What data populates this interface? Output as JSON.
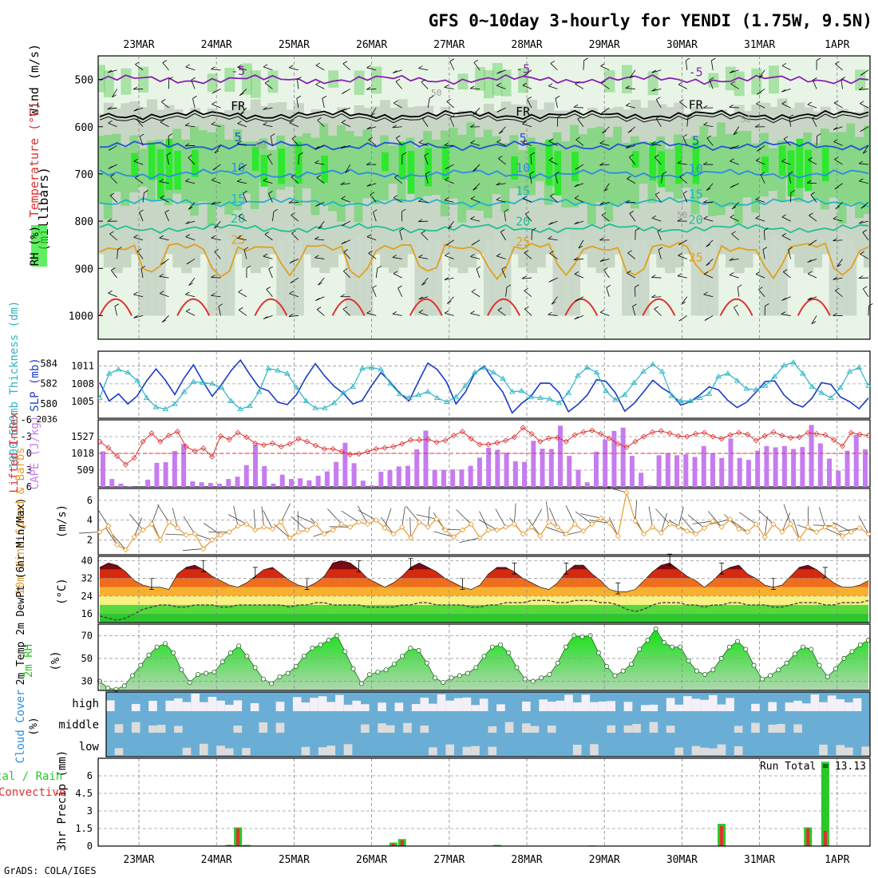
{
  "header": {
    "title": "GFS 0~10day 3-hourly for YENDI (1.75W, 9.5N)",
    "credit": "GrADS: COLA/IGES"
  },
  "colors": {
    "rh_light": "#e8f5e6",
    "rh_mid": "#c8d6c6",
    "rh_green": "#7dd67a",
    "rh_bright": "#2ee82e",
    "temp_m5": "#8a1fb5",
    "temp_5": "#1f55d6",
    "temp_10": "#2a8de0",
    "temp_15": "#1fb5c8",
    "temp_20": "#20c090",
    "temp_25": "#e0a020",
    "temp_30": "#e03030",
    "slp": "#1a3cc8",
    "thickness": "#2ab5c5",
    "lifted_index": "#e03030",
    "cape": "#c67cf0",
    "wind10m": "#e89a30",
    "rh2m": "#28c828",
    "cloud": "#6aaed6",
    "precip_total": "#28c828",
    "precip_conv": "#e03030"
  },
  "chart_data": [
    {
      "type": "heatmap",
      "panel": "upper-air",
      "y_axis_label": "(millibars)",
      "side_labels": [
        "Wind (m/s)",
        "Temperature (°C)",
        "RH (%)"
      ],
      "yticks": [
        500,
        600,
        700,
        800,
        900,
        1000
      ],
      "ylim": [
        1050,
        450
      ],
      "date_labels": [
        "23MAR",
        "24MAR",
        "25MAR",
        "26MAR",
        "27MAR",
        "28MAR",
        "29MAR",
        "30MAR",
        "31MAR",
        "1APR"
      ],
      "isotherms": [
        {
          "label": "-5",
          "level": 500
        },
        {
          "label": "FR",
          "level": 575
        },
        {
          "label": "5",
          "level": 640
        },
        {
          "label": "10",
          "level": 700
        },
        {
          "label": "15",
          "level": 760
        },
        {
          "label": "20",
          "level": 815
        },
        {
          "label": "25",
          "level": 875
        }
      ],
      "rh_labels": [
        "50",
        "50",
        "50",
        "50"
      ]
    },
    {
      "type": "line",
      "panel": "slp-thickness",
      "left_label": "1000-500mb Thickness (dm)",
      "right_label": "SLP (mb)",
      "left_ticks": [
        580,
        582,
        584
      ],
      "right_ticks": [
        1005,
        1008,
        1011
      ],
      "left_range": [
        578.6,
        585.2
      ],
      "right_range": [
        1002.2,
        1013.5
      ],
      "series": [
        {
          "key": "slp",
          "values": [
            1008.2,
            1005.1,
            1006.3,
            1004.6,
            1006.0,
            1008.5,
            1010.5,
            1008.6,
            1006.2,
            1009.0,
            1011.2,
            1008.4,
            1005.9,
            1007.9,
            1010.2,
            1012.0,
            1009.6,
            1007.4,
            1006.8,
            1004.9,
            1004.5,
            1006.2,
            1009.1,
            1011.4,
            1009.3,
            1007.6,
            1006.4,
            1004.6,
            1005.2,
            1007.7,
            1009.9,
            1008.3,
            1006.4,
            1005.1,
            1008.4,
            1011.5,
            1010.4,
            1008.3,
            1004.6,
            1006.6,
            1009.8,
            1011.0,
            1008.6,
            1006.6,
            1003.1,
            1004.7,
            1005.9,
            1008.1,
            1008.1,
            1006.5,
            1003.3,
            1004.5,
            1006.1,
            1008.7,
            1008.4,
            1006.5,
            1003.4,
            1004.7,
            1006.6,
            1008.6,
            1007.3,
            1006.3,
            1004.4,
            1005.0,
            1006.1,
            1007.5,
            1007.0,
            1005.2,
            1004.0,
            1004.9,
            1006.6,
            1008.4,
            1008.5,
            1006.1,
            1004.7,
            1004.1,
            1005.6,
            1008.2,
            1007.9,
            1005.8,
            1005.0,
            1003.8,
            1005.6
          ]
        },
        {
          "key": "thickness",
          "values": [
            580.6,
            583.0,
            583.4,
            583.1,
            582.3,
            580.6,
            579.7,
            579.5,
            580.0,
            581.2,
            582.2,
            582.1,
            582.0,
            581.6,
            580.3,
            579.5,
            579.8,
            581.2,
            583.5,
            583.3,
            583.0,
            581.6,
            580.3,
            579.6,
            579.6,
            580.1,
            581.1,
            581.7,
            583.5,
            583.6,
            583.4,
            582.0,
            581.0,
            580.6,
            580.9,
            581.2,
            580.6,
            580.2,
            580.7,
            581.8,
            583.1,
            583.6,
            583.1,
            582.5,
            581.2,
            581.3,
            580.7,
            580.6,
            580.5,
            580.1,
            581.1,
            582.8,
            583.6,
            583.1,
            581.3,
            580.4,
            580.9,
            582.1,
            583.2,
            583.9,
            583.2,
            580.8,
            580.3,
            580.3,
            580.6,
            581.0,
            582.7,
            583.0,
            582.3,
            581.5,
            581.4,
            581.8,
            582.7,
            583.8,
            584.1,
            583.0,
            581.7,
            581.1,
            580.6,
            581.6,
            583.2,
            583.6,
            581.8
          ]
        }
      ]
    },
    {
      "type": "bar",
      "panel": "cape-li",
      "left_label": "Lifted Index",
      "right_label": "CAPE (J/kg)",
      "cape_ticks": [
        "509",
        "1018",
        "1527",
        "2036"
      ],
      "li_ticks": [
        "-3",
        "0",
        "3",
        "6"
      ],
      "li_top_tick": "-6",
      "cape_range": [
        0,
        2036
      ],
      "li_range": [
        6,
        -6
      ],
      "series": [
        {
          "key": "cape",
          "values": [
            1080,
            240,
            100,
            20,
            0,
            220,
            730,
            750,
            1090,
            1310,
            170,
            140,
            120,
            100,
            240,
            310,
            660,
            1280,
            630,
            100,
            370,
            240,
            260,
            200,
            340,
            470,
            760,
            1340,
            720,
            190,
            50,
            460,
            510,
            620,
            640,
            1140,
            1710,
            520,
            520,
            530,
            530,
            640,
            890,
            1190,
            1130,
            1040,
            780,
            760,
            1400,
            1160,
            1150,
            1860,
            940,
            520,
            140,
            1070,
            1440,
            1700,
            1800,
            940,
            430,
            40,
            960,
            1020,
            960,
            990,
            910,
            1240,
            1020,
            880,
            1470,
            880,
            820,
            1100,
            1240,
            1200,
            1240,
            1150,
            1210,
            1880,
            1320,
            860,
            490,
            1100,
            1580,
            1140
          ]
        },
        {
          "key": "li",
          "values": [
            -2.1,
            -1.0,
            0.5,
            2.0,
            0.8,
            -2.1,
            -3.6,
            -2.1,
            -3.2,
            -3.9,
            -1.2,
            -0.4,
            -0.9,
            0.6,
            -3.1,
            -2.5,
            -3.7,
            -2.9,
            -1.8,
            -1.5,
            -1.8,
            -1.2,
            -1.7,
            -2.6,
            -2.1,
            -1.4,
            -0.8,
            -0.8,
            -0.3,
            0.2,
            0.1,
            -0.3,
            -0.8,
            -1.0,
            -1.2,
            -1.7,
            -2.4,
            -2.4,
            -2.5,
            -2.0,
            -2.3,
            -3.2,
            -3.9,
            -2.6,
            -1.6,
            -1.6,
            -1.9,
            -2.3,
            -2.9,
            -4.6,
            -3.5,
            -2.1,
            -2.7,
            -2.8,
            -2.1,
            -3.3,
            -3.8,
            -4.1,
            -3.5,
            -2.7,
            -1.7,
            -1.1,
            -2.1,
            -3.0,
            -3.8,
            -4.0,
            -3.6,
            -3.1,
            -3.0,
            -3.5,
            -3.7,
            -3.0,
            -2.6,
            -3.3,
            -3.7,
            -3.4,
            -2.3,
            -3.1,
            -3.8,
            -3.2,
            -2.8,
            -2.9,
            -3.7,
            -3.5,
            -3.3,
            -2.4,
            -1.3,
            -3.7,
            -3.4,
            -3.2
          ]
        }
      ]
    },
    {
      "type": "line",
      "panel": "wind10m",
      "left_label": "10m Wind Speed & Barbs",
      "unit_label": "(m/s)",
      "yticks": [
        2,
        4,
        6
      ],
      "ylim": [
        0.5,
        7.2
      ],
      "series": [
        {
          "key": "wind",
          "values": [
            2.8,
            3.4,
            1.5,
            1.0,
            2.3,
            3.0,
            3.6,
            2.0,
            3.8,
            3.2,
            2.5,
            2.6,
            1.1,
            2.0,
            2.5,
            2.8,
            3.4,
            3.6,
            3.0,
            3.3,
            3.1,
            3.8,
            2.2,
            2.8,
            3.0,
            3.6,
            2.6,
            3.0,
            3.6,
            3.3,
            3.8,
            3.6,
            4.0,
            3.2,
            2.6,
            3.3,
            2.2,
            3.8,
            3.3,
            4.1,
            3.0,
            2.3,
            3.0,
            3.6,
            2.2,
            3.0,
            3.0,
            3.3,
            3.6,
            2.6,
            3.3,
            2.4,
            3.8,
            3.3,
            2.6,
            3.6,
            2.9,
            3.6,
            4.2,
            3.7,
            2.4,
            6.8,
            3.9,
            2.6,
            3.3,
            2.7,
            3.6,
            3.3,
            2.9,
            2.6,
            3.2,
            3.9,
            3.3,
            4.1,
            3.1,
            2.8,
            3.6,
            2.3,
            3.6,
            2.8,
            3.6,
            2.1,
            3.3,
            2.8,
            3.3,
            3.4,
            2.4,
            2.8,
            3.2,
            2.6
          ]
        }
      ]
    },
    {
      "type": "area",
      "panel": "temp2m",
      "left_label": "2m Temp 2m DewPt (6hr Min/Max)",
      "unit_label": "(°C)",
      "yticks": [
        16,
        24,
        32,
        40
      ],
      "ylim": [
        12,
        42
      ],
      "series": [
        {
          "key": "temp",
          "values": [
            37,
            39,
            38,
            35,
            31,
            29,
            28,
            28,
            27,
            34,
            37,
            38,
            36,
            33,
            31,
            29,
            28,
            30,
            33,
            36,
            37,
            34,
            31,
            29,
            28,
            30,
            33,
            39,
            40,
            39,
            36,
            32,
            30,
            28,
            30,
            33,
            37,
            39,
            37,
            35,
            32,
            30,
            28,
            27,
            29,
            34,
            37,
            37,
            35,
            32,
            30,
            28,
            27,
            30,
            35,
            38,
            38,
            34,
            31,
            27,
            26,
            26,
            27,
            31,
            35,
            38,
            39,
            36,
            33,
            31,
            28,
            31,
            35,
            37,
            38,
            34,
            32,
            29,
            28,
            29,
            33,
            37,
            38,
            36,
            33,
            30,
            28,
            28,
            29,
            31
          ]
        },
        {
          "key": "dewpt",
          "values": [
            15,
            14,
            13,
            14,
            16,
            18,
            19,
            20,
            20,
            19,
            19,
            20,
            20,
            20,
            19,
            19,
            20,
            20,
            20,
            20,
            20,
            20,
            19,
            20,
            20,
            21,
            21,
            20,
            20,
            20,
            20,
            19,
            19,
            19,
            19,
            20,
            20,
            21,
            21,
            20,
            20,
            20,
            20,
            19,
            19,
            20,
            20,
            21,
            21,
            21,
            22,
            22,
            22,
            21,
            21,
            22,
            22,
            22,
            21,
            21,
            20,
            18,
            17,
            18,
            20,
            21,
            21,
            21,
            20,
            20,
            19,
            20,
            20,
            21,
            21,
            20,
            20,
            20,
            19,
            19,
            20,
            21,
            21,
            21,
            20,
            20,
            21,
            21,
            21,
            22
          ]
        }
      ]
    },
    {
      "type": "area",
      "panel": "rh2m",
      "left_label": "2m RH",
      "unit_label": "(%)",
      "yticks": [
        30,
        50,
        70
      ],
      "ylim": [
        22,
        80
      ],
      "series": [
        {
          "key": "rh",
          "values": [
            30,
            24,
            23,
            26,
            35,
            44,
            53,
            60,
            63,
            55,
            40,
            29,
            36,
            37,
            38,
            47,
            55,
            61,
            52,
            42,
            32,
            28,
            34,
            37,
            43,
            52,
            59,
            62,
            66,
            70,
            56,
            41,
            28,
            36,
            38,
            40,
            45,
            52,
            59,
            57,
            46,
            33,
            29,
            33,
            35,
            37,
            42,
            52,
            60,
            62,
            55,
            42,
            32,
            30,
            33,
            36,
            46,
            60,
            70,
            69,
            70,
            55,
            43,
            35,
            39,
            45,
            58,
            66,
            76,
            64,
            60,
            60,
            48,
            39,
            36,
            40,
            50,
            60,
            65,
            58,
            44,
            32,
            35,
            40,
            46,
            54,
            60,
            58,
            44,
            34,
            41,
            50,
            56,
            62,
            66
          ]
        }
      ]
    },
    {
      "type": "heatmap",
      "panel": "cloud",
      "left_label": "Cloud Cover",
      "unit_label": "(%)",
      "rows": [
        "high",
        "middle",
        "low"
      ]
    },
    {
      "type": "bar",
      "panel": "precip",
      "left_label": "3hr Precip (mm)",
      "legend": "Total / Rain Convective",
      "run_total": "Run Total = 13.13",
      "yticks": [
        "0",
        "1.5",
        "3",
        "4.5",
        "6"
      ],
      "ylim": [
        0,
        7.5
      ],
      "series": [
        {
          "key": "total",
          "values": [
            [
              15,
              0.1
            ],
            [
              16,
              1.6
            ],
            [
              17,
              0.1
            ],
            [
              34,
              0.3
            ],
            [
              35,
              0.6
            ],
            [
              46,
              0.1
            ],
            [
              57,
              0.05
            ],
            [
              72,
              1.9
            ],
            [
              82,
              1.6
            ],
            [
              84,
              7.2
            ]
          ]
        },
        {
          "key": "convective",
          "values": [
            [
              15,
              0.1
            ],
            [
              16,
              1.5
            ],
            [
              17,
              0.05
            ],
            [
              34,
              0.2
            ],
            [
              35,
              0.5
            ],
            [
              46,
              0.05
            ],
            [
              72,
              1.7
            ],
            [
              82,
              1.5
            ],
            [
              84,
              1.3
            ]
          ]
        }
      ]
    }
  ]
}
